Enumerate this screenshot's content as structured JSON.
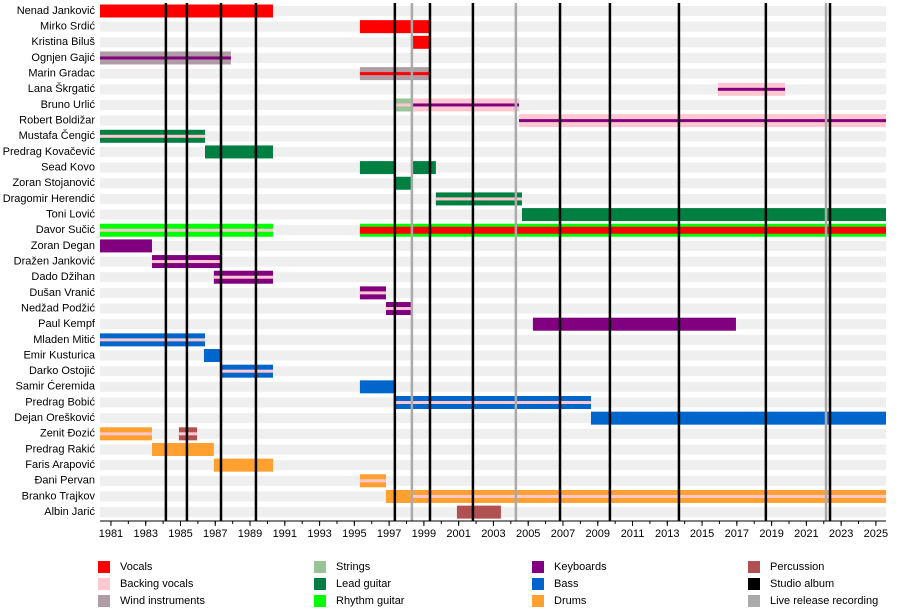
{
  "chart_data": {
    "type": "timeline",
    "xlim": [
      1980.37,
      2025.58
    ],
    "xticks": [
      1981,
      1983,
      1985,
      1987,
      1989,
      1991,
      1993,
      1995,
      1997,
      1999,
      2001,
      2003,
      2005,
      2007,
      2009,
      2011,
      2013,
      2015,
      2017,
      2019,
      2021,
      2023,
      2025
    ],
    "roles": [
      {
        "name": "Vocals",
        "color": "#ff0000"
      },
      {
        "name": "Backing vocals",
        "color": "#ffc8d0"
      },
      {
        "name": "Wind instruments",
        "color": "#b09ca4"
      },
      {
        "name": "Strings",
        "color": "#98c498"
      },
      {
        "name": "Lead guitar",
        "color": "#008040"
      },
      {
        "name": "Rhythm guitar",
        "color": "#00ff00"
      },
      {
        "name": "Keyboards",
        "color": "#800080"
      },
      {
        "name": "Bass",
        "color": "#0066cc"
      },
      {
        "name": "Drums",
        "color": "#ffa030"
      },
      {
        "name": "Percussion",
        "color": "#b05050"
      }
    ],
    "markers": [
      {
        "name": "Studio album",
        "color": "#000000",
        "x": [
          1984.16,
          1985.37,
          1987.33,
          1989.34,
          1997.33,
          1999.35,
          2001.82,
          2006.83,
          2009.7,
          2013.67,
          2018.67,
          2022.36
        ]
      },
      {
        "name": "Live release recording",
        "color": "#aaaaaa",
        "x": [
          1998.31,
          2004.29,
          2022.13
        ]
      }
    ],
    "members": [
      {
        "name": "Nenad Janković",
        "periods": [
          {
            "start": 1980.37,
            "end": 1990.32,
            "role": "Vocals"
          }
        ]
      },
      {
        "name": "Mirko Srdić",
        "periods": [
          {
            "start": 1995.32,
            "end": 1999.35,
            "role": "Vocals"
          }
        ]
      },
      {
        "name": "Kristina Biluš",
        "periods": [
          {
            "start": 1998.31,
            "end": 1999.35,
            "role": "Vocals"
          }
        ]
      },
      {
        "name": "Ognjen Gajić",
        "periods": [
          {
            "start": 1980.37,
            "end": 1987.9,
            "role": "Wind instruments",
            "secondary": "Keyboards"
          }
        ]
      },
      {
        "name": "Marin Gradac",
        "periods": [
          {
            "start": 1995.32,
            "end": 1999.35,
            "role": "Wind instruments",
            "secondary": "Vocals"
          }
        ]
      },
      {
        "name": "Lana Škrgatić",
        "periods": [
          {
            "start": 2015.91,
            "end": 2019.77,
            "role": "Backing vocals",
            "secondary": "Keyboards"
          }
        ]
      },
      {
        "name": "Bruno Urlić",
        "periods": [
          {
            "start": 1997.33,
            "end": 1998.31,
            "role": "Strings",
            "secondary": "Backing vocals"
          },
          {
            "start": 1998.31,
            "end": 2004.47,
            "role": "Backing vocals",
            "secondary": "Keyboards"
          }
        ]
      },
      {
        "name": "Robert Boldižar",
        "periods": [
          {
            "start": 2004.47,
            "end": 2025.58,
            "role": "Backing vocals",
            "secondary": "Keyboards"
          }
        ]
      },
      {
        "name": "Mustafa Čengić",
        "periods": [
          {
            "start": 1980.37,
            "end": 1986.41,
            "role": "Lead guitar",
            "secondary": "Backing vocals"
          }
        ]
      },
      {
        "name": "Predrag Kovačević",
        "periods": [
          {
            "start": 1986.41,
            "end": 1990.32,
            "role": "Lead guitar"
          }
        ]
      },
      {
        "name": "Sead Kovo",
        "periods": [
          {
            "start": 1995.32,
            "end": 1997.33,
            "role": "Lead guitar"
          },
          {
            "start": 1998.31,
            "end": 1999.69,
            "role": "Lead guitar"
          }
        ]
      },
      {
        "name": "Zoran Stojanović",
        "periods": [
          {
            "start": 1997.33,
            "end": 1998.31,
            "role": "Lead guitar"
          }
        ]
      },
      {
        "name": "Dragomir Herendić",
        "periods": [
          {
            "start": 1999.69,
            "end": 2004.64,
            "role": "Lead guitar",
            "secondary": "Backing vocals"
          }
        ]
      },
      {
        "name": "Toni Lović",
        "periods": [
          {
            "start": 2004.64,
            "end": 2025.58,
            "role": "Lead guitar"
          }
        ]
      },
      {
        "name": "Davor Sučić",
        "periods": [
          {
            "start": 1980.37,
            "end": 1990.32,
            "role": "Rhythm guitar",
            "secondary": "Backing vocals"
          },
          {
            "start": 1995.32,
            "end": 2025.58,
            "role": "Rhythm guitar",
            "secondary": "Vocals"
          }
        ]
      },
      {
        "name": "Zoran Degan",
        "periods": [
          {
            "start": 1980.37,
            "end": 1983.36,
            "role": "Keyboards"
          }
        ]
      },
      {
        "name": "Dražen Janković",
        "periods": [
          {
            "start": 1983.36,
            "end": 1987.33,
            "role": "Keyboards",
            "secondary": "Backing vocals"
          }
        ]
      },
      {
        "name": "Dado Džihan",
        "periods": [
          {
            "start": 1986.92,
            "end": 1990.32,
            "role": "Keyboards",
            "secondary": "Backing vocals"
          }
        ]
      },
      {
        "name": "Dušan Vranić",
        "periods": [
          {
            "start": 1995.32,
            "end": 1996.82,
            "role": "Keyboards",
            "secondary": "Backing vocals"
          }
        ]
      },
      {
        "name": "Nedžad Podžić",
        "periods": [
          {
            "start": 1996.82,
            "end": 1998.31,
            "role": "Keyboards",
            "secondary": "Backing vocals"
          }
        ]
      },
      {
        "name": "Paul Kempf",
        "periods": [
          {
            "start": 2005.27,
            "end": 2016.95,
            "role": "Keyboards"
          }
        ]
      },
      {
        "name": "Mladen Mitić",
        "periods": [
          {
            "start": 1980.37,
            "end": 1986.41,
            "role": "Bass",
            "secondary": "Backing vocals"
          }
        ]
      },
      {
        "name": "Emir Kusturica",
        "periods": [
          {
            "start": 1986.35,
            "end": 1987.33,
            "role": "Bass"
          }
        ]
      },
      {
        "name": "Darko Ostojić",
        "periods": [
          {
            "start": 1987.33,
            "end": 1990.32,
            "role": "Bass",
            "secondary": "Backing vocals"
          }
        ]
      },
      {
        "name": "Samir Ćeremida",
        "periods": [
          {
            "start": 1995.32,
            "end": 1997.33,
            "role": "Bass"
          }
        ]
      },
      {
        "name": "Predrag Bobić",
        "periods": [
          {
            "start": 1997.33,
            "end": 2008.61,
            "role": "Bass",
            "secondary": "Backing vocals"
          }
        ]
      },
      {
        "name": "Dejan Orešković",
        "periods": [
          {
            "start": 2008.61,
            "end": 2025.58,
            "role": "Bass"
          }
        ]
      },
      {
        "name": "Zenit Đozić",
        "periods": [
          {
            "start": 1980.37,
            "end": 1983.36,
            "role": "Drums",
            "secondary": "Backing vocals"
          },
          {
            "start": 1984.91,
            "end": 1985.95,
            "role": "Percussion",
            "secondary": "Backing vocals"
          }
        ]
      },
      {
        "name": "Predrag Rakić",
        "periods": [
          {
            "start": 1983.36,
            "end": 1986.92,
            "role": "Drums"
          }
        ]
      },
      {
        "name": "Faris Arapović",
        "periods": [
          {
            "start": 1986.92,
            "end": 1990.32,
            "role": "Drums"
          }
        ]
      },
      {
        "name": "Đani Pervan",
        "periods": [
          {
            "start": 1995.32,
            "end": 1996.82,
            "role": "Drums",
            "secondary": "Backing vocals"
          }
        ]
      },
      {
        "name": "Branko Trajkov",
        "periods": [
          {
            "start": 1996.82,
            "end": 1998.31,
            "role": "Drums"
          },
          {
            "start": 1998.31,
            "end": 2025.58,
            "role": "Drums",
            "secondary": "Backing vocals"
          }
        ]
      },
      {
        "name": "Albin Jarić",
        "periods": [
          {
            "start": 2000.9,
            "end": 2003.43,
            "role": "Percussion"
          }
        ]
      }
    ]
  }
}
